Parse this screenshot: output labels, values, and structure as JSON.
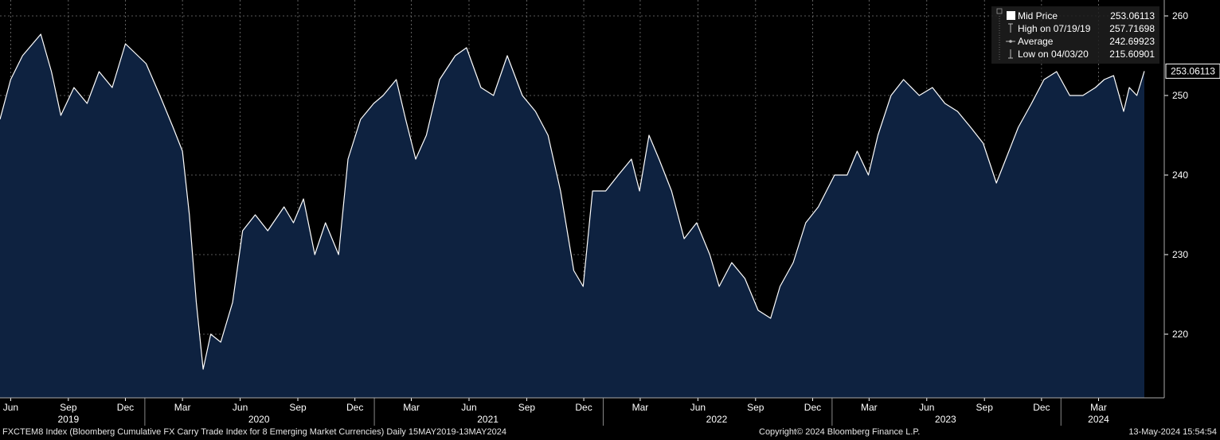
{
  "chart_data": {
    "type": "area",
    "title": "",
    "xlabel": "",
    "ylabel": "",
    "ylim": [
      212,
      262
    ],
    "grid": true,
    "legend_position": "top-right",
    "colors": {
      "background": "#000000",
      "fill": "#0e2240",
      "line": "#ffffff",
      "grid": "#777777"
    },
    "y_ticks": [
      220,
      230,
      240,
      250,
      260
    ],
    "x_ticks": [
      {
        "date": "2019-06-01",
        "label": "Jun"
      },
      {
        "date": "2019-09-01",
        "label": "Sep"
      },
      {
        "date": "2019-12-01",
        "label": "Dec"
      },
      {
        "date": "2020-03-01",
        "label": "Mar"
      },
      {
        "date": "2020-06-01",
        "label": "Jun"
      },
      {
        "date": "2020-09-01",
        "label": "Sep"
      },
      {
        "date": "2020-12-01",
        "label": "Dec"
      },
      {
        "date": "2021-03-01",
        "label": "Mar"
      },
      {
        "date": "2021-06-01",
        "label": "Jun"
      },
      {
        "date": "2021-09-01",
        "label": "Sep"
      },
      {
        "date": "2021-12-01",
        "label": "Dec"
      },
      {
        "date": "2022-03-01",
        "label": "Mar"
      },
      {
        "date": "2022-06-01",
        "label": "Jun"
      },
      {
        "date": "2022-09-01",
        "label": "Sep"
      },
      {
        "date": "2022-12-01",
        "label": "Dec"
      },
      {
        "date": "2023-03-01",
        "label": "Mar"
      },
      {
        "date": "2023-06-01",
        "label": "Jun"
      },
      {
        "date": "2023-09-01",
        "label": "Sep"
      },
      {
        "date": "2023-12-01",
        "label": "Dec"
      },
      {
        "date": "2024-03-01",
        "label": "Mar"
      }
    ],
    "year_labels": [
      {
        "date": "2019-09-01",
        "label": "2019"
      },
      {
        "date": "2020-07-01",
        "label": "2020"
      },
      {
        "date": "2021-07-01",
        "label": "2021"
      },
      {
        "date": "2022-07-01",
        "label": "2022"
      },
      {
        "date": "2023-07-01",
        "label": "2023"
      },
      {
        "date": "2024-03-01",
        "label": "2024"
      }
    ],
    "year_boundaries": [
      "2020-01-01",
      "2021-01-01",
      "2022-01-01",
      "2023-01-01",
      "2024-01-01"
    ],
    "x_range": [
      "2019-05-15",
      "2024-05-13"
    ],
    "series": [
      {
        "name": "Mid Price",
        "x": [
          "2019-05-15",
          "2019-06-01",
          "2019-06-20",
          "2019-07-19",
          "2019-08-05",
          "2019-08-20",
          "2019-09-10",
          "2019-10-01",
          "2019-10-20",
          "2019-11-10",
          "2019-12-01",
          "2020-01-03",
          "2020-01-25",
          "2020-02-15",
          "2020-03-01",
          "2020-03-12",
          "2020-03-23",
          "2020-04-03",
          "2020-04-15",
          "2020-05-01",
          "2020-05-20",
          "2020-06-05",
          "2020-06-25",
          "2020-07-15",
          "2020-08-10",
          "2020-08-25",
          "2020-09-10",
          "2020-09-28",
          "2020-10-15",
          "2020-11-05",
          "2020-11-20",
          "2020-12-10",
          "2020-12-31",
          "2021-01-15",
          "2021-02-05",
          "2021-02-20",
          "2021-03-08",
          "2021-03-25",
          "2021-04-15",
          "2021-05-10",
          "2021-05-28",
          "2021-06-20",
          "2021-07-10",
          "2021-08-01",
          "2021-08-25",
          "2021-09-15",
          "2021-10-05",
          "2021-10-25",
          "2021-11-15",
          "2021-11-30",
          "2021-12-15",
          "2022-01-05",
          "2022-01-25",
          "2022-02-15",
          "2022-02-28",
          "2022-03-15",
          "2022-03-31",
          "2022-04-20",
          "2022-05-10",
          "2022-05-30",
          "2022-06-20",
          "2022-07-05",
          "2022-07-25",
          "2022-08-15",
          "2022-09-05",
          "2022-09-25",
          "2022-10-10",
          "2022-10-31",
          "2022-11-20",
          "2022-12-10",
          "2023-01-05",
          "2023-01-25",
          "2023-02-10",
          "2023-02-28",
          "2023-03-15",
          "2023-04-05",
          "2023-04-25",
          "2023-05-20",
          "2023-06-10",
          "2023-06-30",
          "2023-07-20",
          "2023-08-10",
          "2023-08-30",
          "2023-09-20",
          "2023-10-05",
          "2023-10-25",
          "2023-11-15",
          "2023-12-05",
          "2023-12-25",
          "2024-01-15",
          "2024-02-05",
          "2024-02-25",
          "2024-03-10",
          "2024-03-25",
          "2024-04-10",
          "2024-04-19",
          "2024-05-01",
          "2024-05-13"
        ],
        "values": [
          247,
          252,
          255,
          257.7,
          253,
          247.5,
          251,
          249,
          253,
          251,
          256.5,
          254,
          250,
          246,
          243,
          235,
          224,
          215.6,
          220,
          219,
          224,
          233,
          235,
          233,
          236,
          234,
          237,
          230,
          234,
          230,
          242,
          247,
          249,
          250,
          252,
          247,
          242,
          245,
          252,
          255,
          256,
          251,
          250,
          255,
          250,
          248,
          245,
          238,
          228,
          226,
          238,
          238,
          240,
          242,
          238,
          245,
          242,
          238,
          232,
          234,
          230,
          226,
          229,
          227,
          223,
          222,
          226,
          229,
          234,
          236,
          240,
          240,
          243,
          240,
          245,
          250,
          252,
          250,
          251,
          249,
          248,
          246,
          244,
          239,
          242,
          246,
          249,
          252,
          253,
          250,
          250,
          251,
          252,
          252.5,
          248,
          251,
          250,
          253.06113
        ]
      }
    ],
    "legend": [
      {
        "icon": "square",
        "label": "Mid Price",
        "value": "253.06113"
      },
      {
        "icon": "high-marker",
        "label": "High on 07/19/19",
        "value": "257.71698"
      },
      {
        "icon": "average-marker",
        "label": "Average",
        "value": "242.69923"
      },
      {
        "icon": "low-marker",
        "label": "Low on 04/03/20",
        "value": "215.60901"
      }
    ],
    "last_value_label": "253.06113"
  },
  "footer": {
    "description": "FXCTEM8 Index (Bloomberg Cumulative FX Carry Trade Index for 8 Emerging Market Currencies)  Daily 15MAY2019-13MAY2024",
    "copyright": "Copyright© 2024 Bloomberg Finance L.P.",
    "timestamp": "13-May-2024 15:54:54"
  }
}
